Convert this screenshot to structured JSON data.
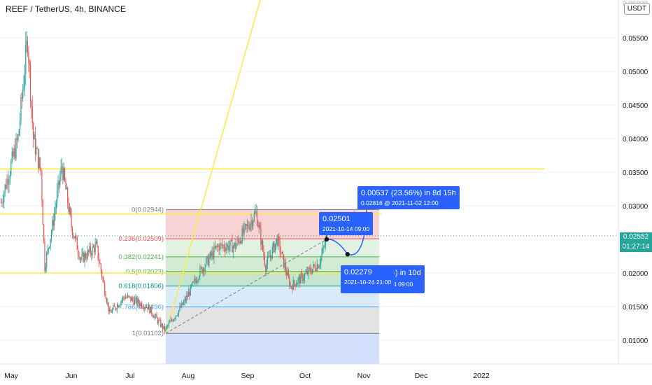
{
  "header": {
    "title": "REEF / TetherUS, 4h, BINANCE",
    "currency": "USDT"
  },
  "price_tag": {
    "price": "0.02552",
    "countdown": "01:27:14"
  },
  "colors": {
    "up": "#26a69a",
    "down": "#ef5350",
    "yellow": "#ffeb3b",
    "accent": "#2962ff"
  },
  "chart_data": {
    "type": "candlestick",
    "title": "REEF / TetherUS, 4h, BINANCE",
    "x_axis_labels": [
      "May",
      "Jun",
      "Jul",
      "Aug",
      "Sep",
      "Oct",
      "Nov",
      "Dec",
      "2022"
    ],
    "y_axis_ticks": [
      "0.05500",
      "0.05000",
      "0.04500",
      "0.04000",
      "0.03500",
      "0.03000",
      "0.02500",
      "0.02000",
      "0.01500",
      "0.01000"
    ],
    "ylim": [
      0.0058,
      0.0603
    ],
    "last_price": 0.02552,
    "price_path_approx": [
      {
        "date": "2021-04-26",
        "close": 0.0305
      },
      {
        "date": "2021-05-05",
        "close": 0.04
      },
      {
        "date": "2021-05-10",
        "close": 0.055
      },
      {
        "date": "2021-05-13",
        "close": 0.04
      },
      {
        "date": "2021-05-17",
        "close": 0.035
      },
      {
        "date": "2021-05-19",
        "close": 0.021
      },
      {
        "date": "2021-05-23",
        "close": 0.027
      },
      {
        "date": "2021-05-28",
        "close": 0.036
      },
      {
        "date": "2021-06-02",
        "close": 0.027
      },
      {
        "date": "2021-06-07",
        "close": 0.022
      },
      {
        "date": "2021-06-15",
        "close": 0.024
      },
      {
        "date": "2021-06-22",
        "close": 0.014
      },
      {
        "date": "2021-06-30",
        "close": 0.0165
      },
      {
        "date": "2021-07-12",
        "close": 0.015
      },
      {
        "date": "2021-07-21",
        "close": 0.0115
      },
      {
        "date": "2021-07-31",
        "close": 0.0155
      },
      {
        "date": "2021-08-08",
        "close": 0.02
      },
      {
        "date": "2021-08-18",
        "close": 0.024
      },
      {
        "date": "2021-08-27",
        "close": 0.024
      },
      {
        "date": "2021-09-07",
        "close": 0.029
      },
      {
        "date": "2021-09-12",
        "close": 0.021
      },
      {
        "date": "2021-09-18",
        "close": 0.025
      },
      {
        "date": "2021-09-25",
        "close": 0.018
      },
      {
        "date": "2021-10-02",
        "close": 0.0195
      },
      {
        "date": "2021-10-10",
        "close": 0.0215
      },
      {
        "date": "2021-10-14",
        "close": 0.02501
      }
    ],
    "horizontal_lines": [
      0.0355,
      0.0288,
      0.02
    ],
    "fibonacci": {
      "levels": [
        {
          "ratio": 0,
          "price": 0.02944,
          "label": "0(0.02944)"
        },
        {
          "ratio": 0.236,
          "price": 0.02509,
          "label": "0.236(0.02509)"
        },
        {
          "ratio": 0.382,
          "price": 0.02241,
          "label": "0.382(0.02241)"
        },
        {
          "ratio": 0.5,
          "price": 0.02023,
          "label": "0.5(0.02023)"
        },
        {
          "ratio": 0.618,
          "price": 0.01806,
          "label": "0.618(0.01806)"
        },
        {
          "ratio": 0.786,
          "price": 0.01496,
          "label": ".786(0.01496)"
        },
        {
          "ratio": 1,
          "price": 0.01102,
          "label": "1(0.01102)"
        }
      ]
    },
    "projection": [
      {
        "price": 0.02501,
        "label": "0.02501",
        "sub": "2021-10-14 09:00"
      },
      {
        "price": 0.02279,
        "label": "0.02279",
        "sub": "2021-10-24 21:00"
      },
      {
        "price": 0.02816,
        "label": "0.00537 (23.56%) in 8d 15h",
        "sub": "0.02816 @ 2021-11-02  12:00"
      }
    ],
    "hidden_callout": {
      "text": "59%) in 10d",
      "sub": "10-24  09:00"
    }
  }
}
